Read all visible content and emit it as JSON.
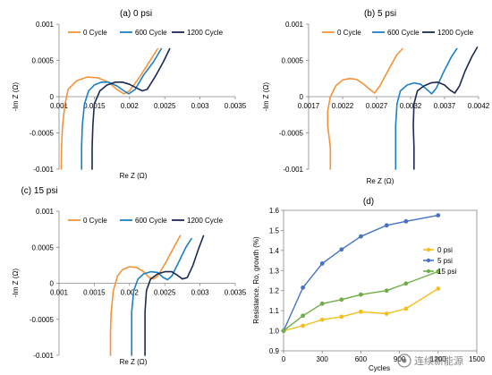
{
  "chart_data": [
    {
      "type": "line",
      "title": "(a) 0 psi",
      "xlabel": "Re Z (Ω)",
      "ylabel": "-Im Z (Ω)",
      "xlim": [
        0.001,
        0.0035
      ],
      "ylim": [
        -0.001,
        0.001
      ],
      "xticks": [
        "0.001",
        "0.0015",
        "0.002",
        "0.0025",
        "0.003",
        "0.0035"
      ],
      "yticks": [
        "0.001",
        "0.0005",
        "0",
        "-0.0005",
        "-0.001"
      ],
      "legend_position": "top-right",
      "series": [
        {
          "name": "0 Cycle",
          "color": "#f4933a",
          "points": [
            [
              0.00103,
              -0.001
            ],
            [
              0.001035,
              -0.0007
            ],
            [
              0.00105,
              -0.0004
            ],
            [
              0.001085,
              -0.0001
            ],
            [
              0.00113,
              0.0001
            ],
            [
              0.00125,
              0.00022
            ],
            [
              0.0014,
              0.00027
            ],
            [
              0.00155,
              0.00026
            ],
            [
              0.0017,
              0.0002
            ],
            [
              0.00182,
              0.0001
            ],
            [
              0.00192,
              4e-05
            ],
            [
              0.002,
              8e-05
            ],
            [
              0.00215,
              0.00028
            ],
            [
              0.00228,
              0.00048
            ],
            [
              0.0024,
              0.00066
            ]
          ]
        },
        {
          "name": "600 Cycle",
          "color": "#1a80c4",
          "points": [
            [
              0.00132,
              -0.001
            ],
            [
              0.00132,
              -0.0007
            ],
            [
              0.00133,
              -0.0004
            ],
            [
              0.00136,
              -0.0001
            ],
            [
              0.00142,
              8e-05
            ],
            [
              0.0015,
              0.00016
            ],
            [
              0.0016,
              0.0002
            ],
            [
              0.0017,
              0.0002
            ],
            [
              0.00182,
              0.00015
            ],
            [
              0.00192,
              8e-05
            ],
            [
              0.00199,
              4e-05
            ],
            [
              0.00208,
              0.0001
            ],
            [
              0.0022,
              0.0003
            ],
            [
              0.00234,
              0.00048
            ],
            [
              0.00245,
              0.00066
            ]
          ]
        },
        {
          "name": "1200 Cycle",
          "color": "#1c2951",
          "points": [
            [
              0.00147,
              -0.001
            ],
            [
              0.00147,
              -0.0007
            ],
            [
              0.00148,
              -0.0004
            ],
            [
              0.0015,
              -0.0001
            ],
            [
              0.00158,
              8e-05
            ],
            [
              0.00168,
              0.00016
            ],
            [
              0.0018,
              0.0002
            ],
            [
              0.0019,
              0.0002
            ],
            [
              0.002,
              0.00017
            ],
            [
              0.0021,
              0.00012
            ],
            [
              0.00218,
              8e-05
            ],
            [
              0.00225,
              0.0001
            ],
            [
              0.00236,
              0.00027
            ],
            [
              0.00248,
              0.00048
            ],
            [
              0.00257,
              0.00066
            ]
          ]
        }
      ]
    },
    {
      "type": "line",
      "title": "(b) 5 psi",
      "xlabel": "Re Z (Ω)",
      "ylabel": "-Im Z (Ω)",
      "xlim": [
        0.0017,
        0.0042
      ],
      "ylim": [
        -0.001,
        0.001
      ],
      "xticks": [
        "0.0017",
        "0.0022",
        "0.0027",
        "0.0032",
        "0.0037",
        "0.0042"
      ],
      "yticks": [
        "0.001",
        "0.0005",
        "0",
        "-0.0005",
        "-0.001"
      ],
      "legend_position": "top-right",
      "series": [
        {
          "name": "0 Cycle",
          "color": "#f4933a",
          "points": [
            [
              0.00202,
              -0.001
            ],
            [
              0.00202,
              -0.0007
            ],
            [
              0.00198,
              -0.0004
            ],
            [
              0.00198,
              -0.0002
            ],
            [
              0.00202,
              0.0
            ],
            [
              0.0021,
              0.00015
            ],
            [
              0.0022,
              0.00023
            ],
            [
              0.0023,
              0.00025
            ],
            [
              0.0024,
              0.00024
            ],
            [
              0.0025,
              0.00018
            ],
            [
              0.0026,
              0.0001
            ],
            [
              0.00267,
              5e-05
            ],
            [
              0.00275,
              0.00015
            ],
            [
              0.00288,
              0.00038
            ],
            [
              0.003,
              0.00058
            ],
            [
              0.00308,
              0.00066
            ]
          ]
        },
        {
          "name": "600 Cycle",
          "color": "#1a80c4",
          "points": [
            [
              0.00298,
              -0.001
            ],
            [
              0.00298,
              -0.0007
            ],
            [
              0.00298,
              -0.0004
            ],
            [
              0.003,
              -0.0001
            ],
            [
              0.00305,
              8e-05
            ],
            [
              0.00315,
              0.00016
            ],
            [
              0.00325,
              0.00019
            ],
            [
              0.00335,
              0.00017
            ],
            [
              0.00345,
              9e-05
            ],
            [
              0.00351,
              4e-05
            ],
            [
              0.00358,
              0.00012
            ],
            [
              0.00368,
              0.00033
            ],
            [
              0.0038,
              0.00055
            ],
            [
              0.00388,
              0.00066
            ]
          ]
        },
        {
          "name": "1200 Cycle",
          "color": "#1c2951",
          "points": [
            [
              0.00325,
              -0.001
            ],
            [
              0.00325,
              -0.0007
            ],
            [
              0.00324,
              -0.0004
            ],
            [
              0.00325,
              -0.0001
            ],
            [
              0.0033,
              8e-05
            ],
            [
              0.0034,
              0.00015
            ],
            [
              0.0035,
              0.00019
            ],
            [
              0.0036,
              0.0002
            ],
            [
              0.0037,
              0.00016
            ],
            [
              0.00378,
              9e-05
            ],
            [
              0.00385,
              5e-05
            ],
            [
              0.00392,
              0.00015
            ],
            [
              0.004,
              0.00035
            ],
            [
              0.0041,
              0.00055
            ],
            [
              0.00418,
              0.00068
            ]
          ]
        }
      ]
    },
    {
      "type": "line",
      "title": "(c) 15 psi",
      "xlabel": "Re Z (Ω)",
      "ylabel": "-Im Z (Ω)",
      "xlim": [
        0.001,
        0.0035
      ],
      "ylim": [
        -0.001,
        0.001
      ],
      "xticks": [
        "0.001",
        "0.0015",
        "0.002",
        "0.0025",
        "0.003",
        "0.0035"
      ],
      "yticks": [
        "0.001",
        "0.0005",
        "0",
        "-0.0005",
        "-0.001"
      ],
      "legend_position": "top-right",
      "series": [
        {
          "name": "0 Cycle",
          "color": "#f4933a",
          "points": [
            [
              0.00173,
              -0.001
            ],
            [
              0.00173,
              -0.0007
            ],
            [
              0.00174,
              -0.0004
            ],
            [
              0.00177,
              -0.0001
            ],
            [
              0.00183,
              0.0001
            ],
            [
              0.0019,
              0.00019
            ],
            [
              0.002,
              0.00023
            ],
            [
              0.0021,
              0.00022
            ],
            [
              0.0022,
              0.00016
            ],
            [
              0.00228,
              8e-05
            ],
            [
              0.00234,
              6e-05
            ],
            [
              0.0024,
              0.0001
            ],
            [
              0.00252,
              0.0003
            ],
            [
              0.00263,
              0.0005
            ],
            [
              0.00272,
              0.00066
            ]
          ]
        },
        {
          "name": "600 Cycle",
          "color": "#1a80c4",
          "points": [
            [
              0.00203,
              -0.001
            ],
            [
              0.00203,
              -0.0007
            ],
            [
              0.00203,
              -0.0004
            ],
            [
              0.00206,
              -0.0001
            ],
            [
              0.00212,
              6e-05
            ],
            [
              0.0022,
              0.00013
            ],
            [
              0.0023,
              0.00016
            ],
            [
              0.0024,
              0.00015
            ],
            [
              0.00248,
              8e-05
            ],
            [
              0.00254,
              5e-05
            ],
            [
              0.0026,
              0.0001
            ],
            [
              0.0027,
              0.0003
            ],
            [
              0.0028,
              0.0005
            ],
            [
              0.00288,
              0.00062
            ]
          ]
        },
        {
          "name": "1200 Cycle",
          "color": "#1c2951",
          "points": [
            [
              0.00222,
              -0.001
            ],
            [
              0.00222,
              -0.0007
            ],
            [
              0.00222,
              -0.0004
            ],
            [
              0.00224,
              -0.0001
            ],
            [
              0.0023,
              6e-05
            ],
            [
              0.0024,
              0.00013
            ],
            [
              0.0025,
              0.00016
            ],
            [
              0.0026,
              0.00016
            ],
            [
              0.00268,
              0.00011
            ],
            [
              0.00275,
              6e-05
            ],
            [
              0.00282,
              8e-05
            ],
            [
              0.0029,
              0.00025
            ],
            [
              0.00298,
              0.00048
            ],
            [
              0.00305,
              0.00066
            ]
          ]
        }
      ]
    },
    {
      "type": "line",
      "title": "(d)",
      "xlabel": "Cycles",
      "ylabel": "Resistance, Ro, growth (%)",
      "xlim": [
        0,
        1500
      ],
      "ylim": [
        0.9,
        1.6
      ],
      "xticks": [
        "0",
        "300",
        "600",
        "900",
        "1200",
        "1500"
      ],
      "yticks": [
        "1.6",
        "1.5",
        "1.4",
        "1.3",
        "1.2",
        "1.1",
        "1.0",
        "0.9"
      ],
      "grid": false,
      "legend_position": "right",
      "series": [
        {
          "name": "0 psi",
          "color": "#f2c01e",
          "points": [
            [
              0,
              1.0
            ],
            [
              150,
              1.025
            ],
            [
              300,
              1.055
            ],
            [
              450,
              1.07
            ],
            [
              600,
              1.095
            ],
            [
              800,
              1.085
            ],
            [
              950,
              1.11
            ],
            [
              1200,
              1.21
            ]
          ]
        },
        {
          "name": "5 psi",
          "color": "#4472c4",
          "points": [
            [
              0,
              1.0
            ],
            [
              150,
              1.215
            ],
            [
              300,
              1.335
            ],
            [
              450,
              1.405
            ],
            [
              600,
              1.47
            ],
            [
              800,
              1.525
            ],
            [
              950,
              1.545
            ],
            [
              1200,
              1.575
            ]
          ]
        },
        {
          "name": "15 psi",
          "color": "#70ad47",
          "points": [
            [
              0,
              1.0
            ],
            [
              150,
              1.075
            ],
            [
              300,
              1.135
            ],
            [
              450,
              1.155
            ],
            [
              600,
              1.18
            ],
            [
              800,
              1.2
            ],
            [
              950,
              1.235
            ],
            [
              1200,
              1.295
            ]
          ]
        }
      ]
    }
  ],
  "watermark": "连续新能源"
}
